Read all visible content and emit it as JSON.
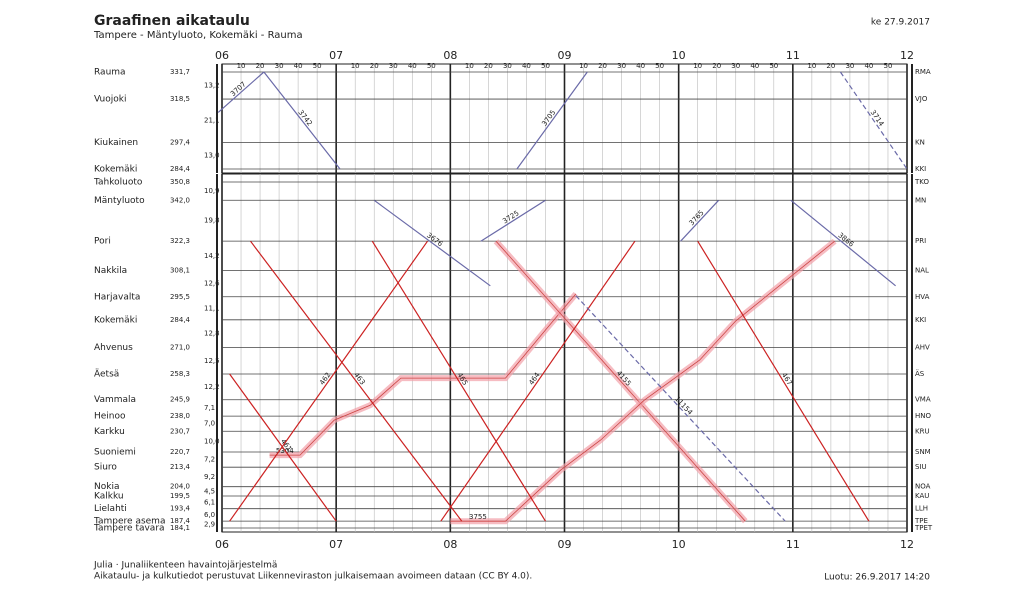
{
  "header": {
    "title": "Graafinen aikataulu",
    "subtitle": "Tampere - Mäntyluoto, Kokemäki - Rauma",
    "date": "ke 27.9.2017"
  },
  "time_axis": {
    "xlim": [
      360,
      720
    ],
    "hours": [
      {
        "value": 360,
        "label": "06"
      },
      {
        "value": 420,
        "label": "07"
      },
      {
        "value": 480,
        "label": "08"
      },
      {
        "value": 540,
        "label": "09"
      },
      {
        "value": 600,
        "label": "10"
      },
      {
        "value": 660,
        "label": "11"
      },
      {
        "value": 720,
        "label": "12"
      }
    ],
    "minutes": [
      {
        "value": 370,
        "label": "10"
      },
      {
        "value": 380,
        "label": "20"
      },
      {
        "value": 390,
        "label": "30"
      },
      {
        "value": 400,
        "label": "40"
      },
      {
        "value": 410,
        "label": "50"
      },
      {
        "value": 430,
        "label": "10"
      },
      {
        "value": 440,
        "label": "20"
      },
      {
        "value": 450,
        "label": "30"
      },
      {
        "value": 460,
        "label": "40"
      },
      {
        "value": 470,
        "label": "50"
      },
      {
        "value": 490,
        "label": "10"
      },
      {
        "value": 500,
        "label": "20"
      },
      {
        "value": 510,
        "label": "30"
      },
      {
        "value": 520,
        "label": "40"
      },
      {
        "value": 530,
        "label": "50"
      },
      {
        "value": 550,
        "label": "10"
      },
      {
        "value": 560,
        "label": "20"
      },
      {
        "value": 570,
        "label": "30"
      },
      {
        "value": 580,
        "label": "40"
      },
      {
        "value": 590,
        "label": "50"
      },
      {
        "value": 610,
        "label": "10"
      },
      {
        "value": 620,
        "label": "20"
      },
      {
        "value": 630,
        "label": "30"
      },
      {
        "value": 640,
        "label": "40"
      },
      {
        "value": 650,
        "label": "50"
      },
      {
        "value": 670,
        "label": "10"
      },
      {
        "value": 680,
        "label": "20"
      },
      {
        "value": 690,
        "label": "30"
      },
      {
        "value": 700,
        "label": "40"
      },
      {
        "value": 710,
        "label": "50"
      }
    ]
  },
  "panels": [
    {
      "ylim": [
        284.4,
        331.7
      ],
      "stations": [
        {
          "name": "Rauma",
          "km": {
            "value": 331.7,
            "label": "331,7"
          },
          "code": "RMA"
        },
        {
          "name": "Vuojoki",
          "km": {
            "value": 318.5,
            "label": "318,5"
          },
          "code": "VJO"
        },
        {
          "name": "Kiukainen",
          "km": {
            "value": 297.4,
            "label": "297,4"
          },
          "code": "KN"
        },
        {
          "name": "Kokemäki",
          "km": {
            "value": 284.4,
            "label": "284,4"
          },
          "code": "KKI"
        }
      ],
      "segments": [
        {
          "value": 13.2,
          "label": "13,2"
        },
        {
          "value": 21.1,
          "label": "21,1"
        },
        {
          "value": 13.0,
          "label": "13,0"
        }
      ],
      "trains": [
        {
          "label": "3707",
          "color": "#6a6aa8",
          "dashed": false,
          "points": [
            [
              358,
              312
            ],
            [
              382,
              331.7
            ]
          ]
        },
        {
          "label": "3742",
          "color": "#6a6aa8",
          "dashed": false,
          "points": [
            [
              382,
              331.7
            ],
            [
              422,
              284.4
            ]
          ]
        },
        {
          "label": "3705",
          "color": "#6a6aa8",
          "dashed": false,
          "points": [
            [
              515,
              284.4
            ],
            [
              552,
              331.7
            ]
          ]
        },
        {
          "label": "3714",
          "color": "#6a6aa8",
          "dashed": true,
          "points": [
            [
              685,
              331.7
            ],
            [
              720,
              284.4
            ]
          ]
        }
      ]
    },
    {
      "ylim": [
        184.1,
        350.8
      ],
      "stations": [
        {
          "name": "Tahkoluoto",
          "km": {
            "value": 350.8,
            "label": "350,8"
          },
          "code": "TKO"
        },
        {
          "name": "Mäntyluoto",
          "km": {
            "value": 342.0,
            "label": "342,0"
          },
          "code": "MN"
        },
        {
          "name": "Pori",
          "km": {
            "value": 322.3,
            "label": "322,3"
          },
          "code": "PRI"
        },
        {
          "name": "Nakkila",
          "km": {
            "value": 308.1,
            "label": "308,1"
          },
          "code": "NAL"
        },
        {
          "name": "Harjavalta",
          "km": {
            "value": 295.5,
            "label": "295,5"
          },
          "code": "HVA"
        },
        {
          "name": "Kokemäki",
          "km": {
            "value": 284.4,
            "label": "284,4"
          },
          "code": "KKI"
        },
        {
          "name": "Ahvenus",
          "km": {
            "value": 271.0,
            "label": "271,0"
          },
          "code": "AHV"
        },
        {
          "name": "Äetsä",
          "km": {
            "value": 258.3,
            "label": "258,3"
          },
          "code": "ÄS"
        },
        {
          "name": "Vammala",
          "km": {
            "value": 245.9,
            "label": "245,9"
          },
          "code": "VMA"
        },
        {
          "name": "Heinoo",
          "km": {
            "value": 238.0,
            "label": "238,0"
          },
          "code": "HNO"
        },
        {
          "name": "Karkku",
          "km": {
            "value": 230.7,
            "label": "230,7"
          },
          "code": "KRU"
        },
        {
          "name": "Suoniemi",
          "km": {
            "value": 220.7,
            "label": "220,7"
          },
          "code": "SNM"
        },
        {
          "name": "Siuro",
          "km": {
            "value": 213.4,
            "label": "213,4"
          },
          "code": "SIU"
        },
        {
          "name": "Nokia",
          "km": {
            "value": 204.0,
            "label": "204,0"
          },
          "code": "NOA"
        },
        {
          "name": "Kalkku",
          "km": {
            "value": 199.5,
            "label": "199,5"
          },
          "code": "KAU"
        },
        {
          "name": "Lielahti",
          "km": {
            "value": 193.4,
            "label": "193,4"
          },
          "code": "LLH"
        },
        {
          "name": "Tampere asema",
          "km": {
            "value": 187.4,
            "label": "187,4"
          },
          "code": "TPE"
        },
        {
          "name": "Tampere tavara",
          "km": {
            "value": 184.1,
            "label": "184,1"
          },
          "code": "TPET"
        }
      ],
      "segments": [
        {
          "value": 10.9,
          "label": "10,9"
        },
        {
          "value": 19.8,
          "label": "19,8"
        },
        {
          "value": 14.2,
          "label": "14,2"
        },
        {
          "value": 12.6,
          "label": "12,6"
        },
        {
          "value": 11.1,
          "label": "11,1"
        },
        {
          "value": 12.8,
          "label": "12,8"
        },
        {
          "value": 12.5,
          "label": "12,5"
        },
        {
          "value": 12.2,
          "label": "12,2"
        },
        {
          "value": 7.1,
          "label": "7,1"
        },
        {
          "value": 7.0,
          "label": "7,0"
        },
        {
          "value": 10.0,
          "label": "10,0"
        },
        {
          "value": 7.2,
          "label": "7,2"
        },
        {
          "value": 9.2,
          "label": "9,2"
        },
        {
          "value": 4.5,
          "label": "4,5"
        },
        {
          "value": 6.1,
          "label": "6,1"
        },
        {
          "value": 6.0,
          "label": "6,0"
        },
        {
          "value": 2.9,
          "label": "2,9"
        }
      ],
      "trains": [
        {
          "label": "5304",
          "color": "#f2a0a8",
          "highlight": true,
          "points": [
            [
              385,
              219.2
            ],
            [
              401,
              219.2
            ],
            [
              419,
              236.1
            ],
            [
              438,
              243.3
            ],
            [
              454,
              256.3
            ],
            [
              509,
              256.3
            ],
            [
              530,
              279.5
            ],
            [
              546,
              296.9
            ]
          ]
        },
        {
          "label": "4155",
          "color": "#f2a0a8",
          "highlight": true,
          "points": [
            [
              504,
              322.3
            ],
            [
              635,
              187.4
            ]
          ]
        },
        {
          "label": "3755",
          "color": "#f2a0a8",
          "highlight": true,
          "points": [
            [
              480,
              187.4
            ],
            [
              509,
              187.4
            ],
            [
              538,
              212.0
            ],
            [
              559,
              226.5
            ],
            [
              582,
              245.7
            ],
            [
              611,
              265.0
            ],
            [
              630,
              283.9
            ],
            [
              682,
              322.3
            ]
          ]
        },
        {
          "label": "461",
          "color": "#cc2222",
          "points": [
            [
              364,
              258.3
            ],
            [
              420,
              187.4
            ]
          ]
        },
        {
          "label": "463",
          "color": "#cc2222",
          "points": [
            [
              375,
              322.3
            ],
            [
              486,
              187.4
            ]
          ]
        },
        {
          "label": "465",
          "color": "#cc2222",
          "points": [
            [
              439,
              322.3
            ],
            [
              530,
              187.4
            ]
          ]
        },
        {
          "label": "462",
          "color": "#cc2222",
          "points": [
            [
              364,
              187.4
            ],
            [
              468,
              322.3
            ]
          ]
        },
        {
          "label": "464",
          "color": "#cc2222",
          "points": [
            [
              475,
              187.4
            ],
            [
              577,
              322.3
            ]
          ]
        },
        {
          "label": "467",
          "color": "#cc2222",
          "points": [
            [
              610,
              322.3
            ],
            [
              700,
              187.4
            ]
          ]
        },
        {
          "label": "3676",
          "color": "#6a6aa8",
          "points": [
            [
              440,
              342.0
            ],
            [
              501,
              300.8
            ]
          ]
        },
        {
          "label": "3725",
          "color": "#6a6aa8",
          "points": [
            [
              496,
              322.3
            ],
            [
              530,
              342.0
            ]
          ]
        },
        {
          "label": "3765",
          "color": "#6a6aa8",
          "points": [
            [
              601,
              322.3
            ],
            [
              621,
              342.0
            ]
          ]
        },
        {
          "label": "3866",
          "color": "#6a6aa8",
          "points": [
            [
              659,
              342.0
            ],
            [
              714,
              300.8
            ]
          ]
        },
        {
          "label": "11154",
          "color": "#6a6aa8",
          "dashed": true,
          "points": [
            [
              546,
              296.0
            ],
            [
              656,
              187.4
            ]
          ]
        }
      ]
    }
  ],
  "footer": {
    "line1": "Julia · Junaliikenteen havaintojärjestelmä",
    "line2": "Aikataulu- ja kulkutiedot perustuvat Liikenneviraston julkaisemaan avoimeen dataan (CC BY 4.0).",
    "created": "Luotu: 26.9.2017 14:20"
  }
}
